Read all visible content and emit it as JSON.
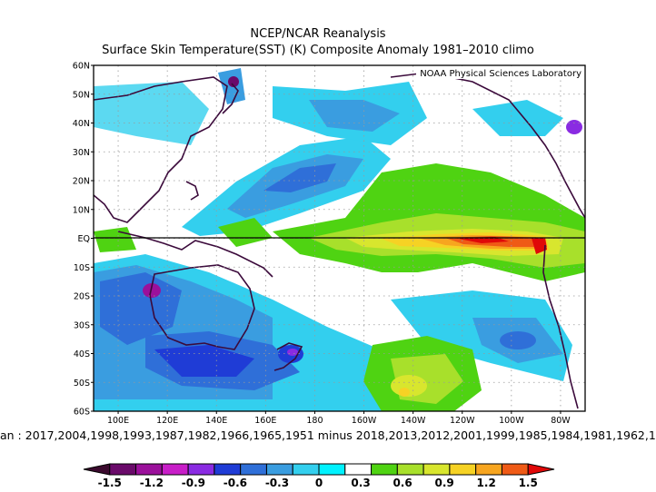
{
  "title": "NCEP/NCAR Reanalysis",
  "subtitle": "Surface Skin Temperature(SST) (K) Composite Anomaly 1981–2010 climo",
  "credit": "NOAA Physical Sciences Laboratory",
  "composite_caption": "an : 2017,2004,1998,1993,1987,1982,1966,1965,1951  minus  2018,2013,2012,2001,1999,1985,1984,1981,1962,1",
  "lat_labels": [
    "60N",
    "50N",
    "40N",
    "30N",
    "20N",
    "10N",
    "EQ",
    "10S",
    "20S",
    "30S",
    "40S",
    "50S",
    "60S"
  ],
  "lon_labels": [
    "100E",
    "120E",
    "140E",
    "160E",
    "180",
    "160W",
    "140W",
    "120W",
    "100W",
    "80W"
  ],
  "colorbar": {
    "colors": [
      "#3b0a2e",
      "#6a0a6a",
      "#9b109b",
      "#c81ec8",
      "#8a2be2",
      "#1f3cd6",
      "#2f6fd8",
      "#3a9de0",
      "#33cfee",
      "#00f2ff",
      "#ffffff",
      "#4fd312",
      "#a8e02b",
      "#d8e62e",
      "#f6d224",
      "#f7a51f",
      "#ef5a16",
      "#e00808"
    ],
    "tick_labels": [
      "-1.5",
      "-1.2",
      "-0.9",
      "-0.6",
      "-0.3",
      "0",
      "0.3",
      "0.6",
      "0.9",
      "1.2",
      "1.5"
    ]
  }
}
